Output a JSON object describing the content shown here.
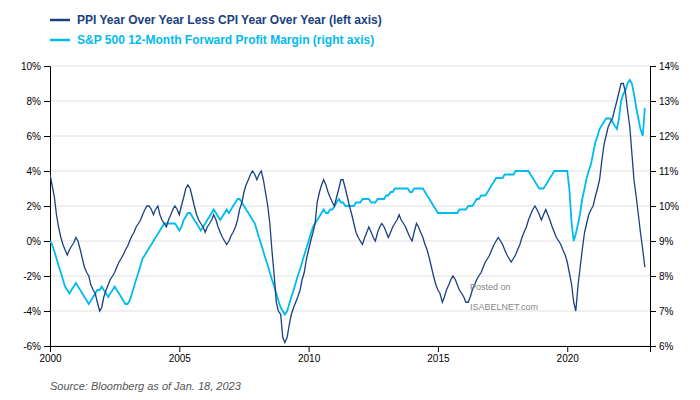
{
  "chart_data": {
    "type": "line",
    "legend": "top",
    "grid": true,
    "annotations": [
      "Source: Bloomberg as of Jan. 18, 2023",
      "Posted on",
      "ISABELNET.com"
    ],
    "xlim": [
      2000.0,
      2023.2
    ],
    "xticks": [
      2000,
      2005,
      2010,
      2015,
      2020
    ],
    "ylim": [
      -6,
      10
    ],
    "yticks": [
      {
        "value": -6,
        "label": "-6%"
      },
      {
        "value": -4,
        "label": "-4%"
      },
      {
        "value": -2,
        "label": "-2%"
      },
      {
        "value": 0,
        "label": "0%"
      },
      {
        "value": 2,
        "label": "2%"
      },
      {
        "value": 4,
        "label": "4%"
      },
      {
        "value": 6,
        "label": "6%"
      },
      {
        "value": 8,
        "label": "8%"
      },
      {
        "value": 10,
        "label": "10%"
      }
    ],
    "y2lim": [
      6,
      14
    ],
    "y2ticks": [
      {
        "value": 6,
        "label": "6%"
      },
      {
        "value": 7,
        "label": "7%"
      },
      {
        "value": 8,
        "label": "8%"
      },
      {
        "value": 9,
        "label": "9%"
      },
      {
        "value": 10,
        "label": "10%"
      },
      {
        "value": 11,
        "label": "11%"
      },
      {
        "value": 12,
        "label": "12%"
      },
      {
        "value": 13,
        "label": "13%"
      },
      {
        "value": 14,
        "label": "14%"
      }
    ],
    "x": [
      2000.0,
      2000.08,
      2000.17,
      2000.25,
      2000.33,
      2000.42,
      2000.5,
      2000.58,
      2000.67,
      2000.75,
      2000.83,
      2000.92,
      2001.0,
      2001.08,
      2001.17,
      2001.25,
      2001.33,
      2001.42,
      2001.5,
      2001.58,
      2001.67,
      2001.75,
      2001.83,
      2001.92,
      2002.0,
      2002.08,
      2002.17,
      2002.25,
      2002.33,
      2002.42,
      2002.5,
      2002.58,
      2002.67,
      2002.75,
      2002.83,
      2002.92,
      2003.0,
      2003.08,
      2003.17,
      2003.25,
      2003.33,
      2003.42,
      2003.5,
      2003.58,
      2003.67,
      2003.75,
      2003.83,
      2003.92,
      2004.0,
      2004.08,
      2004.17,
      2004.25,
      2004.33,
      2004.42,
      2004.5,
      2004.58,
      2004.67,
      2004.75,
      2004.83,
      2004.92,
      2005.0,
      2005.08,
      2005.17,
      2005.25,
      2005.33,
      2005.42,
      2005.5,
      2005.58,
      2005.67,
      2005.75,
      2005.83,
      2005.92,
      2006.0,
      2006.08,
      2006.17,
      2006.25,
      2006.33,
      2006.42,
      2006.5,
      2006.58,
      2006.67,
      2006.75,
      2006.83,
      2006.92,
      2007.0,
      2007.08,
      2007.17,
      2007.25,
      2007.33,
      2007.42,
      2007.5,
      2007.58,
      2007.67,
      2007.75,
      2007.83,
      2007.92,
      2008.0,
      2008.08,
      2008.17,
      2008.25,
      2008.33,
      2008.42,
      2008.5,
      2008.58,
      2008.67,
      2008.75,
      2008.83,
      2008.92,
      2009.0,
      2009.08,
      2009.17,
      2009.25,
      2009.33,
      2009.42,
      2009.5,
      2009.58,
      2009.67,
      2009.75,
      2009.83,
      2009.92,
      2010.0,
      2010.08,
      2010.17,
      2010.25,
      2010.33,
      2010.42,
      2010.5,
      2010.58,
      2010.67,
      2010.75,
      2010.83,
      2010.92,
      2011.0,
      2011.08,
      2011.17,
      2011.25,
      2011.33,
      2011.42,
      2011.5,
      2011.58,
      2011.67,
      2011.75,
      2011.83,
      2011.92,
      2012.0,
      2012.08,
      2012.17,
      2012.25,
      2012.33,
      2012.42,
      2012.5,
      2012.58,
      2012.67,
      2012.75,
      2012.83,
      2012.92,
      2013.0,
      2013.08,
      2013.17,
      2013.25,
      2013.33,
      2013.42,
      2013.5,
      2013.58,
      2013.67,
      2013.75,
      2013.83,
      2013.92,
      2014.0,
      2014.08,
      2014.17,
      2014.25,
      2014.33,
      2014.42,
      2014.5,
      2014.58,
      2014.67,
      2014.75,
      2014.83,
      2014.92,
      2015.0,
      2015.08,
      2015.17,
      2015.25,
      2015.33,
      2015.42,
      2015.5,
      2015.58,
      2015.67,
      2015.75,
      2015.83,
      2015.92,
      2016.0,
      2016.08,
      2016.17,
      2016.25,
      2016.33,
      2016.42,
      2016.5,
      2016.58,
      2016.67,
      2016.75,
      2016.83,
      2016.92,
      2017.0,
      2017.08,
      2017.17,
      2017.25,
      2017.33,
      2017.42,
      2017.5,
      2017.58,
      2017.67,
      2017.75,
      2017.83,
      2017.92,
      2018.0,
      2018.08,
      2018.17,
      2018.25,
      2018.33,
      2018.42,
      2018.5,
      2018.58,
      2018.67,
      2018.75,
      2018.83,
      2018.92,
      2019.0,
      2019.08,
      2019.17,
      2019.25,
      2019.33,
      2019.42,
      2019.5,
      2019.58,
      2019.67,
      2019.75,
      2019.83,
      2019.92,
      2020.0,
      2020.08,
      2020.17,
      2020.25,
      2020.33,
      2020.42,
      2020.5,
      2020.58,
      2020.67,
      2020.75,
      2020.83,
      2020.92,
      2021.0,
      2021.08,
      2021.17,
      2021.25,
      2021.33,
      2021.42,
      2021.5,
      2021.58,
      2021.67,
      2021.75,
      2021.83,
      2021.92,
      2022.0,
      2022.08,
      2022.17,
      2022.25,
      2022.33,
      2022.42,
      2022.5,
      2022.58,
      2022.67,
      2022.75,
      2022.83,
      2022.92,
      2023.0
    ],
    "series": [
      {
        "name": "PPI Year Over Year Less CPI Year Over Year (left axis)",
        "color": "#1a4080",
        "type": "line",
        "values": [
          3.8,
          3.2,
          2.5,
          1.5,
          0.8,
          0.2,
          -0.2,
          -0.5,
          -0.8,
          -0.5,
          -0.3,
          -0.1,
          0.2,
          0.0,
          -0.5,
          -1.0,
          -1.5,
          -1.8,
          -2.0,
          -2.5,
          -2.8,
          -3.0,
          -3.5,
          -4.0,
          -3.8,
          -3.2,
          -2.8,
          -2.5,
          -2.2,
          -2.0,
          -1.8,
          -1.5,
          -1.2,
          -1.0,
          -0.8,
          -0.5,
          -0.3,
          0.0,
          0.3,
          0.5,
          0.8,
          1.0,
          1.2,
          1.5,
          1.8,
          2.0,
          2.0,
          1.8,
          1.5,
          1.8,
          2.0,
          1.5,
          1.2,
          1.0,
          0.8,
          1.2,
          1.5,
          1.8,
          2.0,
          1.8,
          1.5,
          2.0,
          2.5,
          3.0,
          3.2,
          3.0,
          2.5,
          2.0,
          1.5,
          1.2,
          1.0,
          0.8,
          0.5,
          0.8,
          1.0,
          1.2,
          1.5,
          1.2,
          0.8,
          0.5,
          0.2,
          0.0,
          -0.2,
          0.0,
          0.3,
          0.5,
          0.8,
          1.2,
          1.8,
          2.2,
          2.8,
          3.2,
          3.5,
          3.8,
          4.0,
          3.8,
          3.5,
          3.8,
          4.0,
          3.5,
          2.8,
          2.0,
          1.0,
          -0.5,
          -2.0,
          -3.5,
          -4.0,
          -4.2,
          -5.5,
          -5.8,
          -5.5,
          -4.8,
          -4.2,
          -3.8,
          -3.5,
          -3.2,
          -2.8,
          -2.2,
          -1.8,
          -1.0,
          -0.5,
          0.0,
          0.5,
          1.0,
          2.2,
          2.8,
          3.2,
          3.5,
          3.2,
          2.8,
          2.5,
          2.2,
          2.0,
          2.5,
          3.0,
          3.5,
          3.5,
          3.0,
          2.5,
          2.0,
          1.5,
          1.0,
          0.5,
          0.2,
          0.0,
          -0.2,
          0.2,
          0.5,
          0.8,
          0.5,
          0.2,
          0.0,
          0.5,
          0.8,
          1.0,
          0.8,
          0.5,
          0.2,
          0.5,
          0.8,
          1.0,
          1.2,
          1.5,
          1.2,
          1.0,
          0.8,
          0.5,
          0.2,
          0.0,
          0.5,
          1.0,
          0.8,
          0.5,
          0.2,
          -0.2,
          -0.5,
          -1.0,
          -1.5,
          -2.0,
          -2.5,
          -2.8,
          -3.0,
          -3.5,
          -3.2,
          -2.8,
          -2.5,
          -2.2,
          -2.0,
          -2.2,
          -2.5,
          -2.8,
          -3.0,
          -3.2,
          -3.5,
          -3.5,
          -3.2,
          -2.8,
          -2.5,
          -2.2,
          -2.0,
          -1.8,
          -1.5,
          -1.2,
          -1.0,
          -0.8,
          -0.5,
          -0.2,
          0.0,
          0.2,
          0.0,
          -0.2,
          -0.5,
          -0.8,
          -1.0,
          -1.2,
          -1.0,
          -0.8,
          -0.5,
          -0.2,
          0.2,
          0.5,
          0.8,
          1.2,
          1.5,
          1.8,
          2.0,
          1.8,
          1.5,
          1.2,
          1.5,
          1.8,
          1.5,
          1.2,
          0.8,
          0.5,
          0.2,
          0.0,
          -0.2,
          -0.5,
          -0.8,
          -1.2,
          -1.8,
          -2.5,
          -3.5,
          -4.0,
          -2.5,
          -1.5,
          -0.5,
          0.5,
          1.0,
          1.5,
          1.8,
          2.0,
          2.5,
          3.0,
          3.5,
          4.5,
          5.5,
          6.0,
          6.5,
          6.8,
          7.0,
          7.5,
          8.0,
          8.5,
          9.0,
          9.0,
          8.5,
          7.5,
          6.5,
          5.0,
          3.5,
          2.5,
          1.5,
          0.5,
          -0.5,
          -1.5
        ]
      },
      {
        "name": "S&P 500 12-Month Forward Profit Margin (right axis)",
        "color": "#00bbee",
        "type": "line",
        "axis": "y2",
        "values": [
          9.0,
          8.9,
          8.7,
          8.5,
          8.3,
          8.1,
          7.9,
          7.7,
          7.6,
          7.5,
          7.6,
          7.7,
          7.8,
          7.7,
          7.6,
          7.5,
          7.4,
          7.3,
          7.2,
          7.3,
          7.4,
          7.5,
          7.6,
          7.6,
          7.7,
          7.6,
          7.5,
          7.4,
          7.5,
          7.6,
          7.7,
          7.6,
          7.5,
          7.4,
          7.3,
          7.2,
          7.2,
          7.3,
          7.5,
          7.7,
          7.9,
          8.1,
          8.3,
          8.5,
          8.6,
          8.7,
          8.8,
          8.9,
          9.0,
          9.1,
          9.2,
          9.3,
          9.4,
          9.5,
          9.5,
          9.5,
          9.5,
          9.5,
          9.5,
          9.4,
          9.3,
          9.4,
          9.6,
          9.7,
          9.8,
          9.8,
          9.7,
          9.6,
          9.5,
          9.4,
          9.3,
          9.4,
          9.5,
          9.6,
          9.7,
          9.8,
          9.9,
          9.8,
          9.7,
          9.6,
          9.7,
          9.8,
          9.9,
          9.8,
          9.9,
          10.0,
          10.1,
          10.2,
          10.2,
          10.1,
          10.0,
          9.9,
          9.8,
          9.7,
          9.6,
          9.5,
          9.3,
          9.1,
          8.9,
          8.7,
          8.5,
          8.3,
          8.1,
          7.9,
          7.7,
          7.5,
          7.3,
          7.1,
          7.0,
          6.9,
          7.0,
          7.2,
          7.4,
          7.6,
          7.8,
          8.0,
          8.2,
          8.4,
          8.6,
          8.8,
          9.0,
          9.2,
          9.4,
          9.5,
          9.6,
          9.7,
          9.8,
          9.9,
          9.8,
          9.8,
          9.9,
          9.9,
          10.0,
          10.1,
          10.2,
          10.1,
          10.1,
          10.0,
          10.0,
          10.0,
          10.0,
          10.0,
          10.1,
          10.1,
          10.1,
          10.2,
          10.2,
          10.2,
          10.2,
          10.1,
          10.1,
          10.1,
          10.2,
          10.2,
          10.2,
          10.2,
          10.3,
          10.3,
          10.4,
          10.4,
          10.5,
          10.5,
          10.5,
          10.5,
          10.5,
          10.5,
          10.5,
          10.4,
          10.4,
          10.5,
          10.5,
          10.5,
          10.5,
          10.5,
          10.4,
          10.3,
          10.2,
          10.1,
          10.0,
          9.9,
          9.8,
          9.8,
          9.8,
          9.8,
          9.8,
          9.8,
          9.8,
          9.8,
          9.8,
          9.8,
          9.9,
          9.9,
          9.9,
          9.9,
          10.0,
          10.0,
          10.0,
          10.1,
          10.2,
          10.2,
          10.3,
          10.3,
          10.3,
          10.4,
          10.5,
          10.6,
          10.7,
          10.8,
          10.8,
          10.8,
          10.8,
          10.9,
          10.9,
          10.9,
          10.9,
          10.9,
          11.0,
          11.0,
          11.0,
          11.0,
          11.0,
          11.0,
          11.0,
          10.9,
          10.8,
          10.7,
          10.6,
          10.5,
          10.5,
          10.5,
          10.6,
          10.7,
          10.8,
          10.9,
          11.0,
          11.0,
          11.0,
          11.0,
          11.0,
          11.0,
          11.0,
          10.5,
          9.5,
          9.0,
          9.2,
          9.5,
          9.8,
          10.2,
          10.5,
          10.8,
          11.0,
          11.2,
          11.5,
          11.8,
          12.0,
          12.2,
          12.3,
          12.4,
          12.5,
          12.5,
          12.5,
          12.4,
          12.3,
          12.2,
          12.5,
          13.0,
          13.2,
          13.3,
          13.5,
          13.6,
          13.5,
          13.2,
          12.8,
          12.5,
          12.2,
          12.0,
          12.8
        ]
      }
    ]
  }
}
